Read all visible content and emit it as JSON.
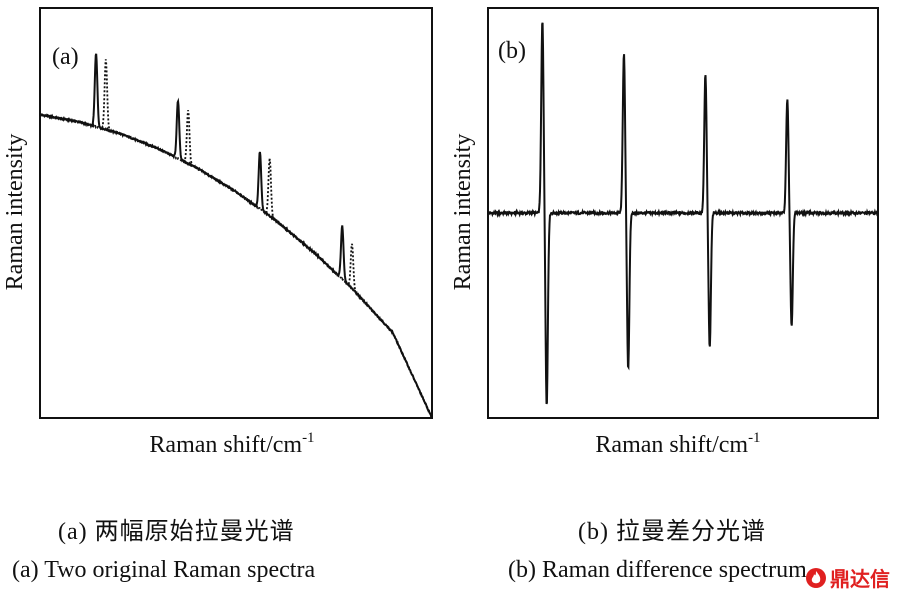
{
  "figure": {
    "captions": {
      "a_zh": "(a) 两幅原始拉曼光谱",
      "a_en": "(a) Two original Raman spectra",
      "b_zh": "(b) 拉曼差分光谱",
      "b_en": "(b) Raman difference spectrum"
    },
    "watermark": {
      "text": "鼎达信",
      "icon": "flame-logo-icon",
      "color": "#e02020"
    }
  },
  "chart_data": [
    {
      "type": "line",
      "panel_label": "(a)",
      "xlabel": "Raman shift/cm",
      "xlabel_superscript": "-1",
      "ylabel": "Raman intensity",
      "xlim": [
        0,
        100
      ],
      "ylim": [
        0,
        100
      ],
      "grid": false,
      "legend": "none",
      "line_color": "#111111",
      "baseline": {
        "x": [
          0,
          10,
          20,
          30,
          40,
          50,
          60,
          70,
          80,
          90,
          100
        ],
        "y": [
          74,
          72.2,
          69.5,
          65.8,
          61,
          55.2,
          48.3,
          40.3,
          31.2,
          20.8,
          0
        ]
      },
      "series": [
        {
          "style": "solid",
          "peaks": [
            {
              "x": 14.3,
              "height": 18
            },
            {
              "x": 35.2,
              "height": 14
            },
            {
              "x": 56.1,
              "height": 14
            },
            {
              "x": 77.1,
              "height": 13
            }
          ]
        },
        {
          "style": "dotted",
          "peaks": [
            {
              "x": 16.8,
              "height": 17
            },
            {
              "x": 37.8,
              "height": 13
            },
            {
              "x": 58.6,
              "height": 14
            },
            {
              "x": 79.6,
              "height": 11
            }
          ]
        }
      ]
    },
    {
      "type": "line",
      "panel_label": "(b)",
      "xlabel": "Raman shift/cm",
      "xlabel_superscript": "-1",
      "ylabel": "Raman intensity",
      "xlim": [
        0,
        100
      ],
      "ylim": [
        -50,
        50
      ],
      "grid": false,
      "legend": "none",
      "line_color": "#111111",
      "baseline": 0,
      "pairs": [
        {
          "x": 14.3,
          "max": 47,
          "min": -47
        },
        {
          "x": 35.2,
          "max": 39,
          "min": -38
        },
        {
          "x": 56.1,
          "max": 34,
          "min": -33
        },
        {
          "x": 77.1,
          "max": 28,
          "min": -28
        }
      ]
    }
  ]
}
